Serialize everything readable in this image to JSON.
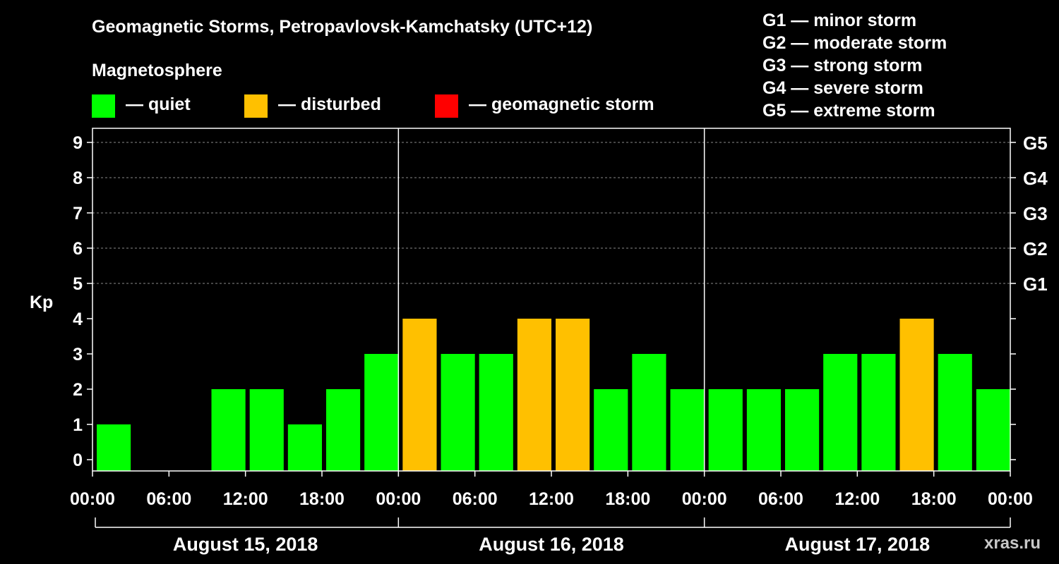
{
  "chart_data": {
    "type": "bar",
    "title": "Geomagnetic Storms, Petropavlovsk-Kamchatsky (UTC+12)",
    "ylabel": "Kp",
    "ylim": [
      0,
      9
    ],
    "y_ticks": [
      "0",
      "1",
      "2",
      "3",
      "4",
      "5",
      "6",
      "7",
      "8",
      "9"
    ],
    "right_ticks": [
      {
        "kp": 5,
        "label": "G1"
      },
      {
        "kp": 6,
        "label": "G2"
      },
      {
        "kp": 7,
        "label": "G3"
      },
      {
        "kp": 8,
        "label": "G4"
      },
      {
        "kp": 9,
        "label": "G5"
      }
    ],
    "x_tick_labels": [
      "00:00",
      "06:00",
      "12:00",
      "18:00",
      "00:00",
      "06:00",
      "12:00",
      "18:00",
      "00:00",
      "06:00",
      "12:00",
      "18:00",
      "00:00"
    ],
    "days": [
      "August 15, 2018",
      "August 16, 2018",
      "August 17, 2018"
    ],
    "interval_hours": 3,
    "values": [
      1,
      0,
      0,
      2,
      2,
      1,
      2,
      3,
      4,
      3,
      3,
      4,
      4,
      2,
      3,
      2,
      2,
      2,
      2,
      3,
      3,
      4,
      3,
      2
    ],
    "status": [
      "quiet",
      "quiet",
      "quiet",
      "quiet",
      "quiet",
      "quiet",
      "quiet",
      "quiet",
      "disturbed",
      "quiet",
      "quiet",
      "disturbed",
      "disturbed",
      "quiet",
      "quiet",
      "quiet",
      "quiet",
      "quiet",
      "quiet",
      "quiet",
      "quiet",
      "disturbed",
      "quiet",
      "quiet"
    ],
    "grid": "dashed at Kp 5-9",
    "legend": {
      "title": "Magnetosphere",
      "items": [
        {
          "key": "quiet",
          "label": "— quiet",
          "color": "#00ff00"
        },
        {
          "key": "disturbed",
          "label": "— disturbed",
          "color": "#ffc000"
        },
        {
          "key": "storm",
          "label": "— geomagnetic storm",
          "color": "#ff0000"
        }
      ]
    },
    "storm_scale": [
      "G1 — minor storm",
      "G2 — moderate storm",
      "G3 — strong storm",
      "G4 — severe storm",
      "G5 — extreme storm"
    ]
  },
  "colors": {
    "quiet": "#00ff00",
    "disturbed": "#ffc000",
    "storm": "#ff0000",
    "background": "#000000",
    "axis": "#ffffff"
  },
  "watermark": "xras.ru"
}
